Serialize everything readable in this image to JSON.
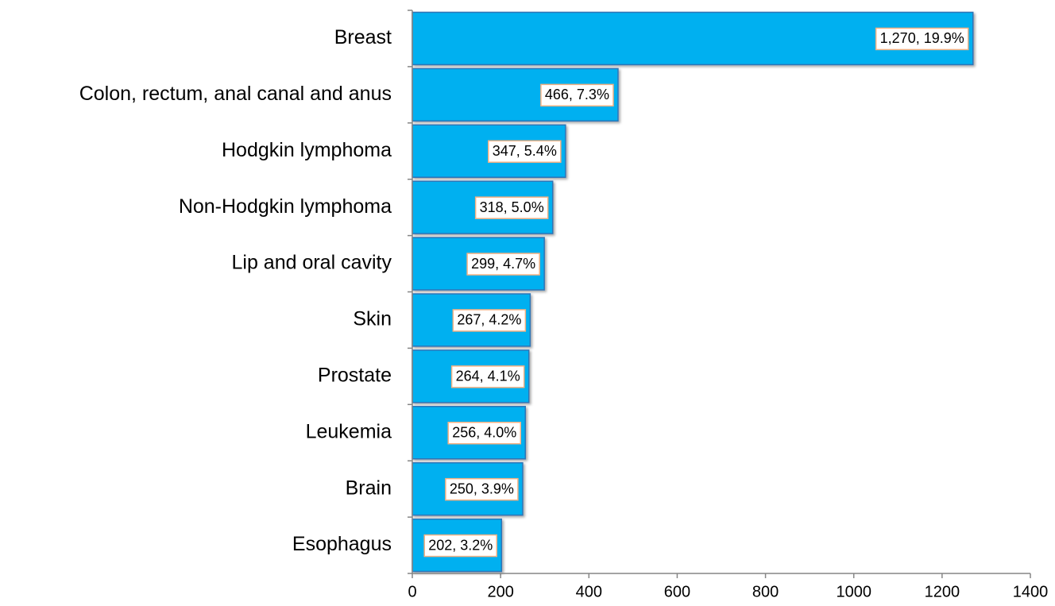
{
  "chart_data": {
    "type": "bar",
    "orientation": "horizontal",
    "categories": [
      "Breast",
      "Colon, rectum, anal canal and anus",
      "Hodgkin lymphoma",
      "Non-Hodgkin lymphoma",
      "Lip and oral cavity",
      "Skin",
      "Prostate",
      "Leukemia",
      "Brain",
      "Esophagus"
    ],
    "values": [
      1270,
      466,
      347,
      318,
      299,
      267,
      264,
      256,
      250,
      202
    ],
    "value_labels": [
      "1,270, 19.9%",
      "466, 7.3%",
      "347, 5.4%",
      "318, 5.0%",
      "299, 4.7%",
      "267, 4.2%",
      "264, 4.1%",
      "256, 4.0%",
      "250, 3.9%",
      "202, 3.2%"
    ],
    "color": "#00b0f0",
    "xlim": [
      0,
      1400
    ],
    "xticks": [
      0,
      200,
      400,
      600,
      800,
      1000,
      1200,
      1400
    ],
    "grid": false
  }
}
